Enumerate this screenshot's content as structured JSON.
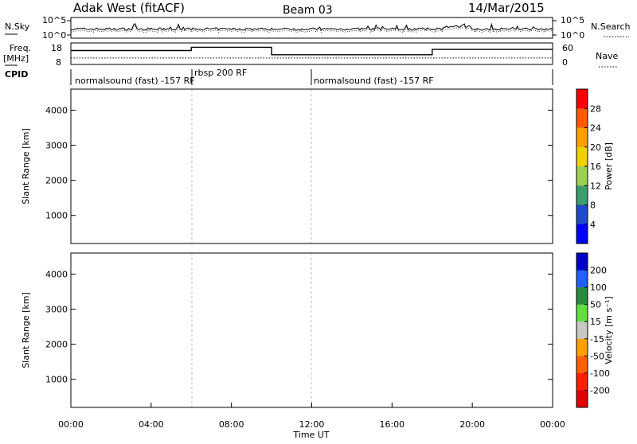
{
  "header": {
    "radar": "Adak West (fitACF)",
    "beam": "Beam 03",
    "date": "14/Mar/2015"
  },
  "chart_data": [
    {
      "type": "line",
      "panel": "noise",
      "left_label": "N.Sky",
      "right_label": "N.Search",
      "left_ticks": [
        "10^5",
        "10^0"
      ],
      "right_ticks": [
        "10^5",
        "10^0"
      ],
      "yscale": "log"
    },
    {
      "type": "line",
      "panel": "frequency",
      "left_label_top": "Freq.",
      "left_label_unit": "[MHz]",
      "right_label": "Nave",
      "left_ticks": [
        "18",
        "8"
      ],
      "right_ticks": [
        "60",
        "0"
      ],
      "ylim_left": [
        8,
        18
      ],
      "ylim_right": [
        0,
        60
      ],
      "freq_steps": [
        {
          "t0": 0.0,
          "t1": 6.0,
          "level": 0.35
        },
        {
          "t0": 6.0,
          "t1": 10.0,
          "level": 0.2
        },
        {
          "t0": 10.0,
          "t1": 18.0,
          "level": 0.55
        },
        {
          "t0": 18.0,
          "t1": 24.0,
          "level": 0.3
        }
      ],
      "nave_level": 0.7
    },
    {
      "type": "table",
      "panel": "cpid",
      "label": "CPID",
      "segments": [
        {
          "label": "normalsound (fast) -157 RF",
          "t0": 0.0,
          "t1": 6.0
        },
        {
          "label": "rbsp 200 RF",
          "t0": 6.0,
          "t1": 12.0
        },
        {
          "label": "normalsound (fast) -157 RF",
          "t0": 12.0,
          "t1": 24.0
        }
      ]
    },
    {
      "type": "heatmap",
      "panel": "power",
      "ylabel": "Slant Range [km]",
      "yticks": [
        1000,
        2000,
        3000,
        4000
      ],
      "ylim": [
        200,
        4600
      ],
      "colorbar_label": "Power [dB]",
      "colorbar_ticks": [
        "28",
        "24",
        "20",
        "16",
        "12",
        "8",
        "4"
      ],
      "colorbar_colors": [
        "#ff0000",
        "#ff5a00",
        "#ffa000",
        "#f0d000",
        "#9bd050",
        "#3c9e6c",
        "#1e4cc8",
        "#0000ff"
      ]
    },
    {
      "type": "heatmap",
      "panel": "velocity",
      "ylabel": "Slant Range [km]",
      "yticks": [
        1000,
        2000,
        3000,
        4000
      ],
      "ylim": [
        200,
        4600
      ],
      "xlabel": "Time UT",
      "xticks": [
        "00:00",
        "04:00",
        "08:00",
        "12:00",
        "16:00",
        "20:00",
        "00:00"
      ],
      "xlim": [
        0,
        24
      ],
      "colorbar_label": "Velocity [m s⁻¹]",
      "colorbar_ticks": [
        "200",
        "100",
        "50",
        "15",
        "-15",
        "-50",
        "-100",
        "-200"
      ],
      "colorbar_colors": [
        "#0000c8",
        "#2060ff",
        "#2a8a3c",
        "#60e040",
        "#c8c8c0",
        "#ffa000",
        "#ff6000",
        "#ff2000",
        "#e00000"
      ]
    }
  ]
}
